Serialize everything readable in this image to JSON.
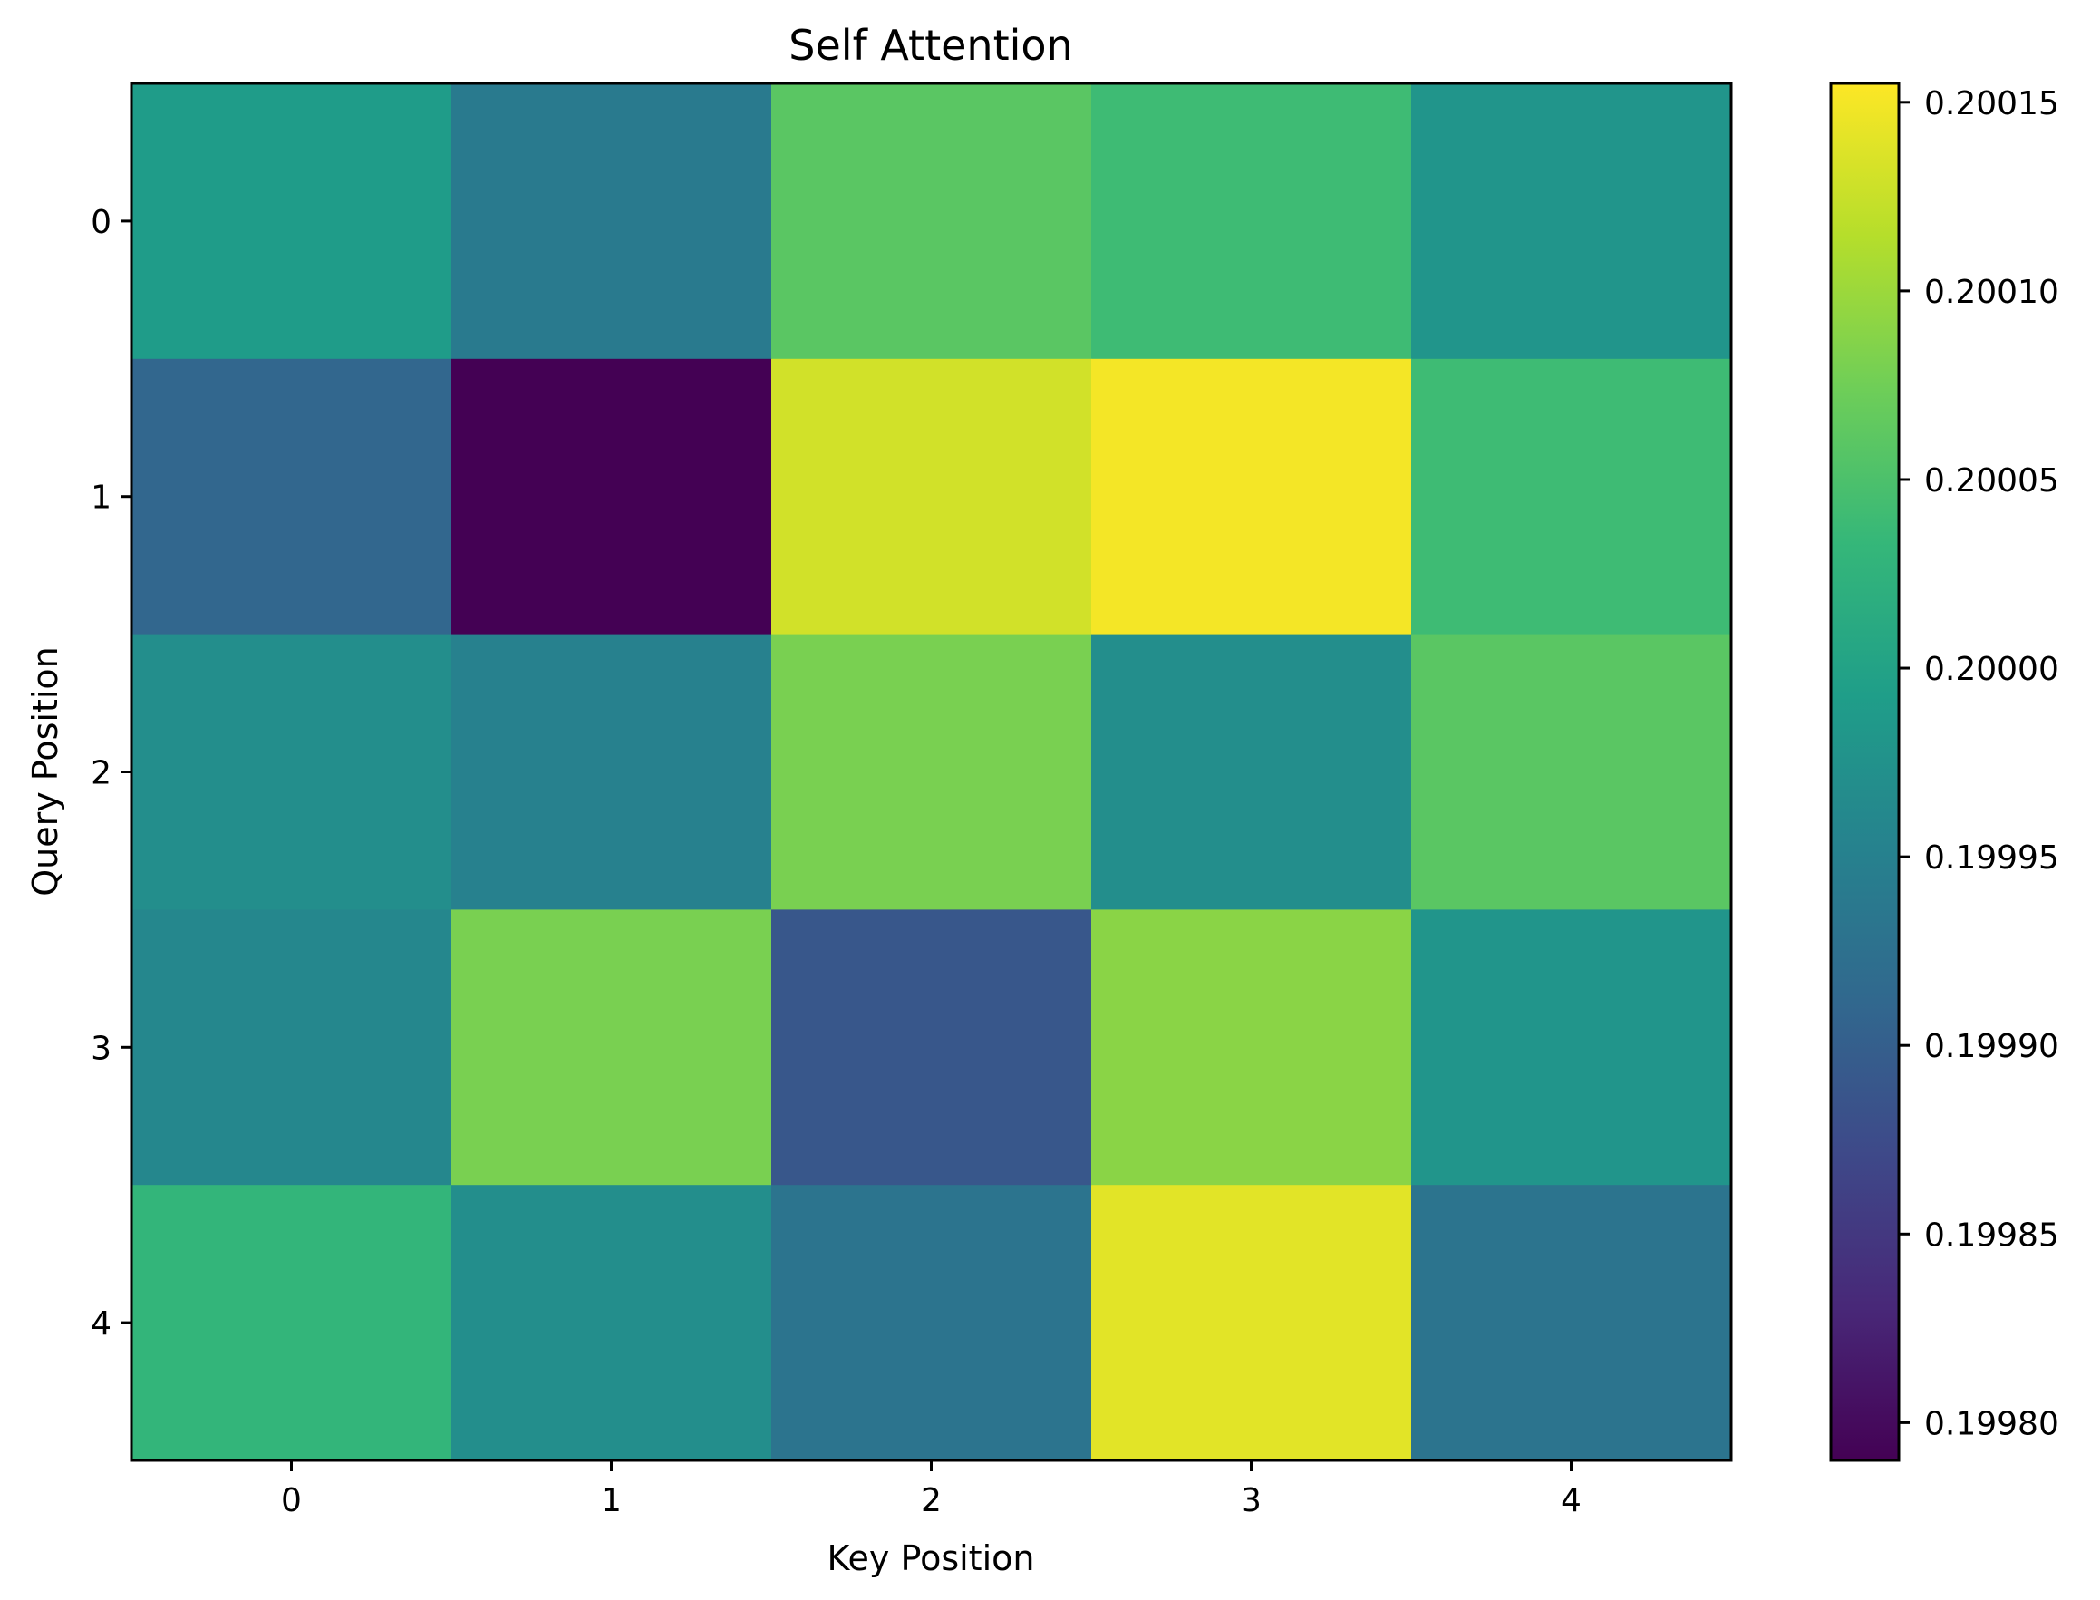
{
  "chart_data": {
    "type": "heatmap",
    "title": "Self Attention",
    "xlabel": "Key Position",
    "ylabel": "Query Position",
    "x_categories": [
      "0",
      "1",
      "2",
      "3",
      "4"
    ],
    "y_categories": [
      "0",
      "1",
      "2",
      "3",
      "4"
    ],
    "values": [
      [
        0.19999,
        0.19994,
        0.20006,
        0.20004,
        0.19998
      ],
      [
        0.19991,
        0.19979,
        0.20013,
        0.20015,
        0.20004
      ],
      [
        0.19997,
        0.19995,
        0.20008,
        0.19997,
        0.20006
      ],
      [
        0.19996,
        0.20008,
        0.19989,
        0.20009,
        0.19998
      ],
      [
        0.20003,
        0.19997,
        0.19993,
        0.20014,
        0.19993
      ]
    ],
    "colormap": "viridis",
    "colorbar": {
      "range": [
        0.19979,
        0.200155
      ],
      "ticks": [
        0.1998,
        0.19985,
        0.1999,
        0.19995,
        0.2,
        0.20005,
        0.2001,
        0.20015
      ],
      "tick_labels": [
        "0.19980",
        "0.19985",
        "0.19990",
        "0.19995",
        "0.20000",
        "0.20005",
        "0.20010",
        "0.20015"
      ]
    },
    "grid": false,
    "colors": {
      "viridis_stops": [
        "#440154",
        "#482878",
        "#3e4989",
        "#31688e",
        "#26828e",
        "#1f9e89",
        "#35b779",
        "#6ece58",
        "#b5de2b",
        "#fde725"
      ]
    }
  }
}
